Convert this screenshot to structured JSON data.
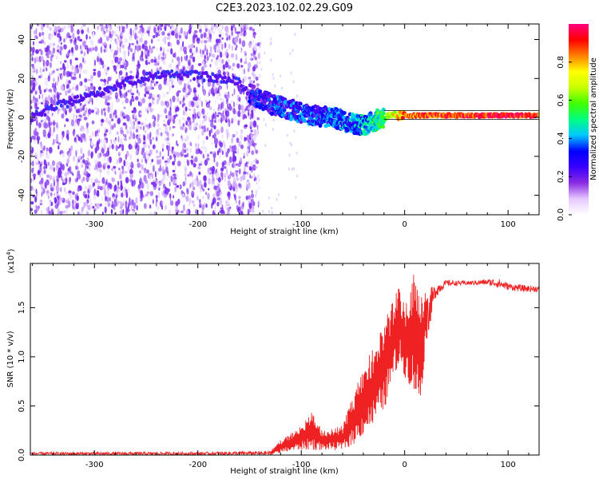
{
  "title": "C2E3.2023.102.02.29.G09",
  "chart_data": [
    {
      "type": "heatmap",
      "xlabel": "Height of straight line (km)",
      "ylabel": "Frequency (Hz)",
      "xlim": [
        -362,
        130
      ],
      "ylim": [
        -50,
        48
      ],
      "x_ticks": [
        -300,
        -200,
        -100,
        0,
        100
      ],
      "y_ticks": [
        -40,
        -20,
        0,
        20,
        40
      ],
      "colorbar": {
        "label": "Normalized spectral amplitude",
        "range": [
          0,
          1
        ],
        "ticks": [
          "0.0",
          "0.2",
          "0.4",
          "0.6",
          "0.8"
        ],
        "colormap": [
          "#ffffff",
          "#e6c8ff",
          "#8a2be2",
          "#3a00ff",
          "#0000ff",
          "#00c8ff",
          "#00ff80",
          "#40ff00",
          "#c8ff00",
          "#ffff00",
          "#ff8000",
          "#ff0000",
          "#ff0080"
        ]
      },
      "noise_region_x": [
        -362,
        -150
      ],
      "signal_track": [
        {
          "x": -360,
          "y": 0
        },
        {
          "x": -340,
          "y": 5
        },
        {
          "x": -300,
          "y": 12
        },
        {
          "x": -270,
          "y": 18
        },
        {
          "x": -240,
          "y": 22
        },
        {
          "x": -210,
          "y": 22
        },
        {
          "x": -180,
          "y": 20
        },
        {
          "x": -160,
          "y": 18
        },
        {
          "x": -150,
          "y": 12
        },
        {
          "x": -130,
          "y": 7
        },
        {
          "x": -110,
          "y": 4
        },
        {
          "x": -90,
          "y": 1
        },
        {
          "x": -70,
          "y": 0
        },
        {
          "x": -50,
          "y": -3
        },
        {
          "x": -40,
          "y": -4
        },
        {
          "x": -30,
          "y": -2
        },
        {
          "x": -20,
          "y": 0
        },
        {
          "x": 0,
          "y": 1
        },
        {
          "x": 50,
          "y": 1
        },
        {
          "x": 130,
          "y": 1
        }
      ],
      "amplitude_track": [
        {
          "x": -150,
          "a": 0.25
        },
        {
          "x": -120,
          "a": 0.3
        },
        {
          "x": -90,
          "a": 0.3
        },
        {
          "x": -60,
          "a": 0.35
        },
        {
          "x": -40,
          "a": 0.4
        },
        {
          "x": -20,
          "a": 0.55
        },
        {
          "x": 0,
          "a": 0.85
        },
        {
          "x": 40,
          "a": 0.9
        },
        {
          "x": 80,
          "a": 0.92
        },
        {
          "x": 100,
          "a": 0.95
        },
        {
          "x": 130,
          "a": 0.9
        }
      ]
    },
    {
      "type": "line",
      "xlabel": "Height of straight line (km)",
      "ylabel": "SNR (10 * v/v)",
      "y_multiplier": "(x10",
      "y_multiplier_exp": "4",
      "y_multiplier_close": ")",
      "xlim": [
        -362,
        130
      ],
      "ylim": [
        0,
        1.95
      ],
      "x_ticks": [
        -300,
        -200,
        -100,
        0,
        100
      ],
      "y_ticks": [
        "0.0",
        "0.5",
        "1.0",
        "1.5"
      ],
      "color": "#ee2222",
      "envelope": [
        {
          "x": -362,
          "low": 0.0,
          "high": 0.03
        },
        {
          "x": -200,
          "low": 0.0,
          "high": 0.03
        },
        {
          "x": -130,
          "low": 0.0,
          "high": 0.04
        },
        {
          "x": -120,
          "low": 0.02,
          "high": 0.15
        },
        {
          "x": -100,
          "low": 0.05,
          "high": 0.3
        },
        {
          "x": -90,
          "low": 0.05,
          "high": 0.45
        },
        {
          "x": -80,
          "low": 0.05,
          "high": 0.25
        },
        {
          "x": -60,
          "low": 0.05,
          "high": 0.3
        },
        {
          "x": -50,
          "low": 0.1,
          "high": 0.6
        },
        {
          "x": -40,
          "low": 0.2,
          "high": 0.9
        },
        {
          "x": -30,
          "low": 0.3,
          "high": 1.1
        },
        {
          "x": -20,
          "low": 0.45,
          "high": 1.35
        },
        {
          "x": -10,
          "low": 0.8,
          "high": 1.6
        },
        {
          "x": -5,
          "low": 0.9,
          "high": 1.75
        },
        {
          "x": 0,
          "low": 0.8,
          "high": 1.55
        },
        {
          "x": 10,
          "low": 0.6,
          "high": 1.9
        },
        {
          "x": 15,
          "low": 0.45,
          "high": 1.7
        },
        {
          "x": 20,
          "low": 1.1,
          "high": 1.65
        },
        {
          "x": 30,
          "low": 1.6,
          "high": 1.75
        },
        {
          "x": 40,
          "low": 1.72,
          "high": 1.78
        },
        {
          "x": 60,
          "low": 1.73,
          "high": 1.77
        },
        {
          "x": 80,
          "low": 1.73,
          "high": 1.79
        },
        {
          "x": 90,
          "low": 1.7,
          "high": 1.8
        },
        {
          "x": 100,
          "low": 1.68,
          "high": 1.75
        },
        {
          "x": 115,
          "low": 1.66,
          "high": 1.73
        },
        {
          "x": 130,
          "low": 1.66,
          "high": 1.72
        }
      ]
    }
  ]
}
